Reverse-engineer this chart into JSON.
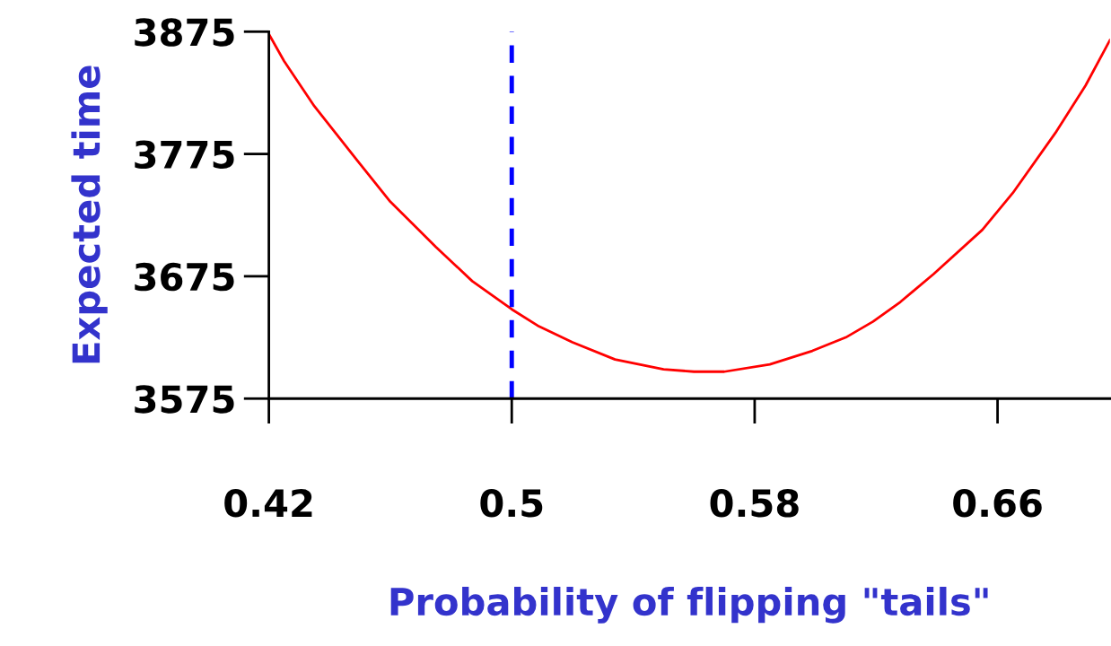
{
  "chart_data": {
    "type": "line",
    "xlabel": "Probability of flipping \"tails\"",
    "ylabel": "Expected time",
    "x": [
      0.42,
      0.425,
      0.435,
      0.449,
      0.46,
      0.475,
      0.487,
      0.5,
      0.509,
      0.52,
      0.534,
      0.55,
      0.56,
      0.57,
      0.585,
      0.599,
      0.61,
      0.619,
      0.628,
      0.639,
      0.655,
      0.665,
      0.679,
      0.689,
      0.697
    ],
    "series": [
      {
        "color": "#ff0000",
        "values": [
          3873,
          3851,
          3814,
          3770,
          3736,
          3699,
          3671,
          3648,
          3634,
          3621,
          3607,
          3599,
          3597,
          3597,
          3603,
          3614,
          3625,
          3638,
          3654,
          3677,
          3713,
          3743,
          3792,
          3831,
          3868
        ]
      }
    ],
    "xlim": [
      0.42,
      0.697
    ],
    "xticks": [
      0.42,
      0.5,
      0.58,
      0.66
    ],
    "ylim": [
      3575,
      3875
    ],
    "yticks": [
      3575,
      3675,
      3775,
      3875
    ],
    "ref_lines": [
      {
        "axis": "x",
        "value": 0.5,
        "color": "#0000ff",
        "line_style": "dashed"
      }
    ],
    "grid": false,
    "legend": false,
    "marker": "none",
    "line_style": "solid"
  }
}
